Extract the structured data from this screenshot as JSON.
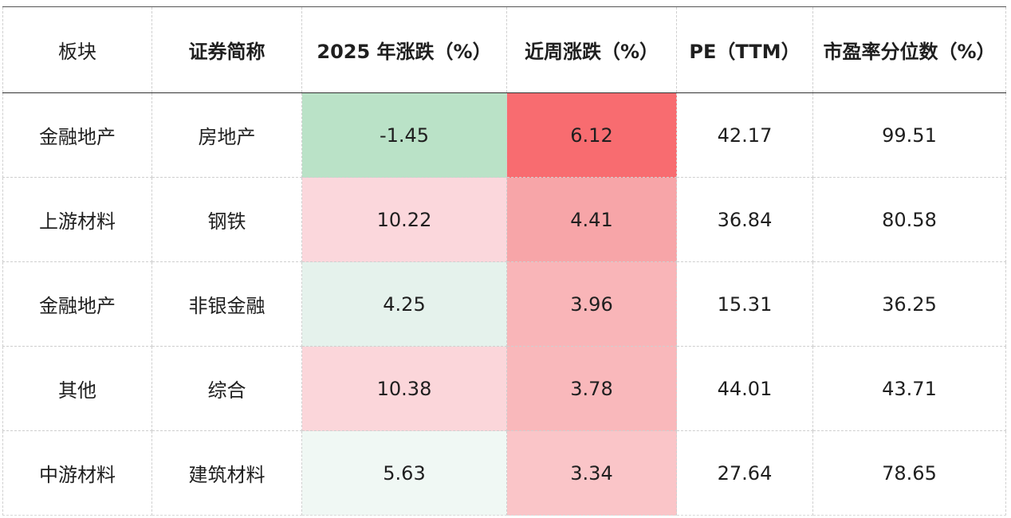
{
  "chart_data": {
    "type": "table",
    "columns": [
      "板块",
      "证券简称",
      "2025 年涨跌（%）",
      "近周涨跌（%）",
      "PE（TTM）",
      "市盈率分位数（%）"
    ],
    "rows": [
      [
        "金融地产",
        "房地产",
        "-1.45",
        "6.12",
        "42.17",
        "99.51"
      ],
      [
        "上游材料",
        "钢铁",
        "10.22",
        "4.41",
        "36.84",
        "80.58"
      ],
      [
        "金融地产",
        "非银金融",
        "4.25",
        "3.96",
        "15.31",
        "36.25"
      ],
      [
        "其他",
        "综合",
        "10.38",
        "3.78",
        "44.01",
        "43.71"
      ],
      [
        "中游材料",
        "建筑材料",
        "5.63",
        "3.34",
        "27.64",
        "78.65"
      ]
    ],
    "heat_colors": {
      "ytd_change": [
        "#bae2c7",
        "#fbd7dc",
        "#e5f2ec",
        "#fbd6da",
        "#f0f8f4"
      ],
      "week_change": [
        "#f86c70",
        "#f7a5a8",
        "#f9b5b8",
        "#f9b8bb",
        "#fac5c8"
      ]
    }
  }
}
